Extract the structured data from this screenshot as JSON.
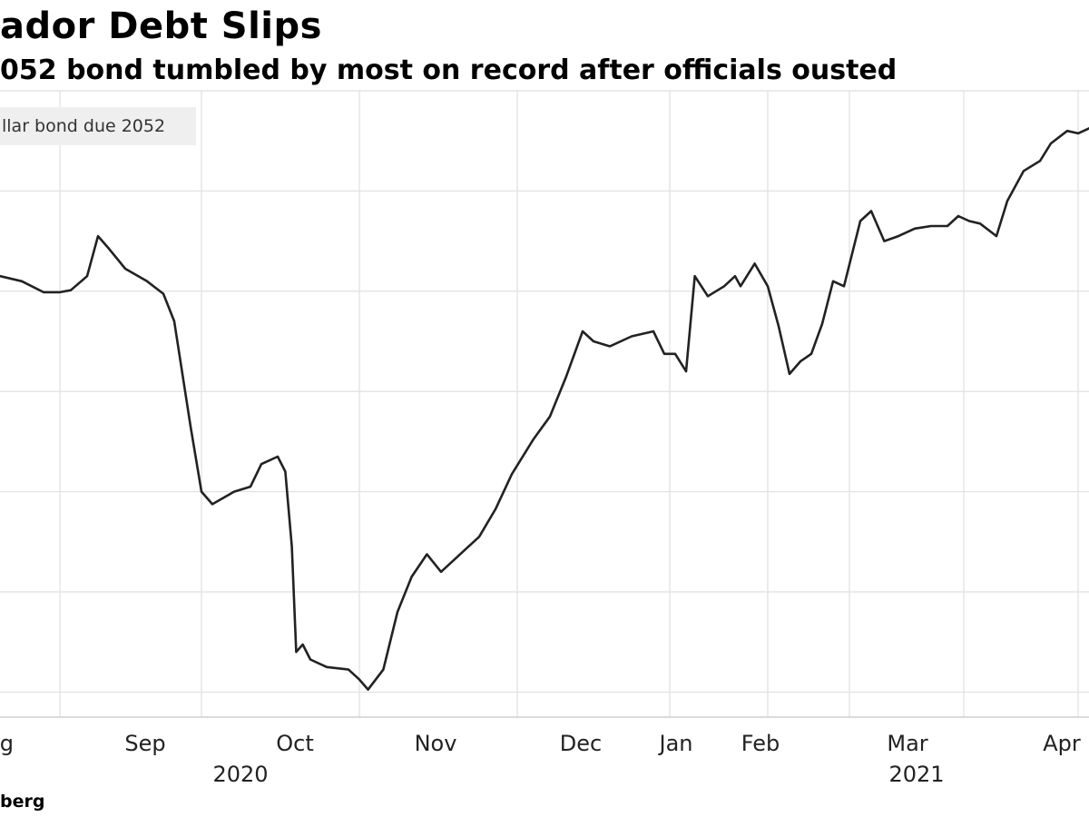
{
  "header": {
    "title": "ador Debt Slips",
    "subtitle": "052 bond tumbled by most on record after officials ousted"
  },
  "legend": {
    "label": "llar bond due 2052"
  },
  "footer": {
    "source": "berg"
  },
  "colors": {
    "line": "#222222",
    "grid": "#e3e3e3",
    "legend_bg": "#efefef"
  },
  "chart_data": {
    "type": "line",
    "title": "ador Debt Slips",
    "subtitle": "052 bond tumbled by most on record after officials ousted",
    "grid": true,
    "x_tick_labels": [
      "ug",
      "Sep",
      "Oct",
      "Nov",
      "Dec",
      "Jan",
      "Feb",
      "Mar",
      "Apr"
    ],
    "x_year_labels": [
      {
        "label": "2020",
        "near": "Sep"
      },
      {
        "label": "2021",
        "near": "Mar"
      }
    ],
    "series": [
      {
        "name": "llar bond due 2052",
        "points": [
          [
            0.0,
            4.3
          ],
          [
            0.02,
            4.2
          ],
          [
            0.04,
            3.98
          ],
          [
            0.055,
            3.98
          ],
          [
            0.065,
            4.02
          ],
          [
            0.08,
            4.3
          ],
          [
            0.09,
            5.1
          ],
          [
            0.1,
            4.85
          ],
          [
            0.115,
            4.45
          ],
          [
            0.135,
            4.2
          ],
          [
            0.15,
            3.95
          ],
          [
            0.16,
            3.4
          ],
          [
            0.175,
            1.3
          ],
          [
            0.185,
            0.0
          ],
          [
            0.195,
            -0.25
          ],
          [
            0.215,
            0.0
          ],
          [
            0.23,
            0.1
          ],
          [
            0.24,
            0.55
          ],
          [
            0.255,
            0.7
          ],
          [
            0.262,
            0.4
          ],
          [
            0.268,
            -1.1
          ],
          [
            0.272,
            -3.2
          ],
          [
            0.278,
            -3.05
          ],
          [
            0.285,
            -3.35
          ],
          [
            0.3,
            -3.5
          ],
          [
            0.32,
            -3.55
          ],
          [
            0.33,
            -3.75
          ],
          [
            0.338,
            -3.95
          ],
          [
            0.345,
            -3.75
          ],
          [
            0.352,
            -3.55
          ],
          [
            0.365,
            -2.4
          ],
          [
            0.378,
            -1.7
          ],
          [
            0.392,
            -1.25
          ],
          [
            0.405,
            -1.6
          ],
          [
            0.425,
            -1.2
          ],
          [
            0.44,
            -0.9
          ],
          [
            0.455,
            -0.35
          ],
          [
            0.47,
            0.35
          ],
          [
            0.49,
            1.05
          ],
          [
            0.505,
            1.5
          ],
          [
            0.52,
            2.3
          ],
          [
            0.535,
            3.2
          ],
          [
            0.545,
            3.0
          ],
          [
            0.56,
            2.9
          ],
          [
            0.58,
            3.1
          ],
          [
            0.6,
            3.2
          ],
          [
            0.61,
            2.75
          ],
          [
            0.62,
            2.75
          ],
          [
            0.63,
            2.4
          ],
          [
            0.638,
            4.3
          ],
          [
            0.65,
            3.9
          ],
          [
            0.665,
            4.1
          ],
          [
            0.675,
            4.3
          ],
          [
            0.68,
            4.1
          ],
          [
            0.693,
            4.55
          ],
          [
            0.705,
            4.1
          ],
          [
            0.715,
            3.3
          ],
          [
            0.725,
            2.35
          ],
          [
            0.735,
            2.6
          ],
          [
            0.745,
            2.75
          ],
          [
            0.755,
            3.35
          ],
          [
            0.765,
            4.2
          ],
          [
            0.775,
            4.1
          ],
          [
            0.79,
            5.4
          ],
          [
            0.8,
            5.6
          ],
          [
            0.812,
            5.0
          ],
          [
            0.825,
            5.1
          ],
          [
            0.84,
            5.25
          ],
          [
            0.855,
            5.3
          ],
          [
            0.87,
            5.3
          ],
          [
            0.88,
            5.5
          ],
          [
            0.89,
            5.4
          ],
          [
            0.9,
            5.35
          ],
          [
            0.915,
            5.1
          ],
          [
            0.925,
            5.8
          ],
          [
            0.94,
            6.4
          ],
          [
            0.955,
            6.6
          ],
          [
            0.965,
            6.95
          ],
          [
            0.98,
            7.2
          ],
          [
            0.99,
            7.15
          ],
          [
            1.0,
            7.25
          ]
        ]
      }
    ]
  }
}
